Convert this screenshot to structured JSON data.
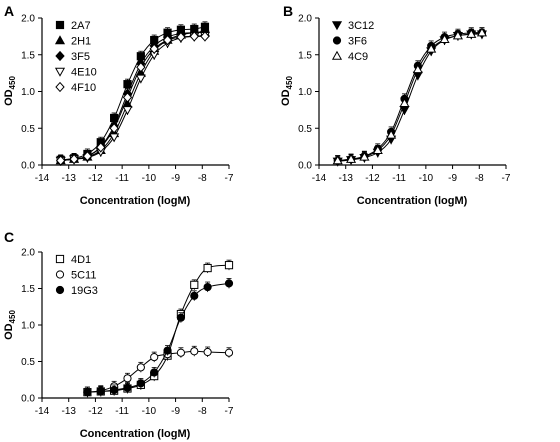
{
  "chart_data": [
    {
      "panel_letter": "A",
      "type": "scatter",
      "fit": "sigmoid",
      "xlabel": "Concentration (logM)",
      "ylabel": "OD450",
      "ylabel_main": "OD",
      "ylabel_sub": "450",
      "xlim": [
        -14,
        -7
      ],
      "ylim": [
        0,
        2.0
      ],
      "xticks": [
        "-14",
        "-13",
        "-12",
        "-11",
        "-10",
        "-9",
        "-8",
        "-7"
      ],
      "yticks": [
        "0.0",
        "0.5",
        "1.0",
        "1.5",
        "2.0"
      ],
      "legend_position": "top-left",
      "x": [
        -13.3,
        -12.8,
        -12.3,
        -11.8,
        -11.3,
        -10.8,
        -10.3,
        -9.8,
        -9.3,
        -8.8,
        -8.3,
        -7.9
      ],
      "series": [
        {
          "name": "2A7",
          "marker": "square-filled",
          "values": [
            0.07,
            0.09,
            0.15,
            0.31,
            0.64,
            1.1,
            1.48,
            1.7,
            1.8,
            1.84,
            1.85,
            1.88
          ]
        },
        {
          "name": "2H1",
          "marker": "triangle-up-filled",
          "values": [
            0.06,
            0.08,
            0.11,
            0.2,
            0.43,
            0.83,
            1.25,
            1.55,
            1.7,
            1.77,
            1.8,
            1.8
          ]
        },
        {
          "name": "3F5",
          "marker": "diamond-filled",
          "values": [
            0.06,
            0.08,
            0.12,
            0.25,
            0.53,
            0.97,
            1.38,
            1.62,
            1.74,
            1.79,
            1.8,
            1.82
          ]
        },
        {
          "name": "4E10",
          "marker": "triangle-down-open",
          "values": [
            0.06,
            0.08,
            0.1,
            0.18,
            0.38,
            0.75,
            1.18,
            1.5,
            1.66,
            1.73,
            1.75,
            1.76
          ]
        },
        {
          "name": "4F10",
          "marker": "diamond-open",
          "values": [
            0.06,
            0.08,
            0.12,
            0.24,
            0.5,
            0.92,
            1.33,
            1.58,
            1.7,
            1.74,
            1.75,
            1.75
          ]
        }
      ]
    },
    {
      "panel_letter": "B",
      "type": "scatter",
      "fit": "sigmoid",
      "xlabel": "Concentration (logM)",
      "ylabel": "OD450",
      "ylabel_main": "OD",
      "ylabel_sub": "450",
      "xlim": [
        -14,
        -7
      ],
      "ylim": [
        0,
        2.0
      ],
      "xticks": [
        "-14",
        "-13",
        "-12",
        "-11",
        "-10",
        "-9",
        "-8",
        "-7"
      ],
      "yticks": [
        "0.0",
        "0.5",
        "1.0",
        "1.5",
        "2.0"
      ],
      "legend_position": "top-left",
      "x": [
        -13.3,
        -12.8,
        -12.3,
        -11.8,
        -11.3,
        -10.8,
        -10.3,
        -9.8,
        -9.3,
        -8.8,
        -8.3,
        -7.9
      ],
      "series": [
        {
          "name": "3C12",
          "marker": "triangle-down-filled",
          "values": [
            0.05,
            0.07,
            0.1,
            0.17,
            0.35,
            0.75,
            1.22,
            1.55,
            1.7,
            1.76,
            1.78,
            1.78
          ]
        },
        {
          "name": "3F6",
          "marker": "circle-filled",
          "values": [
            0.06,
            0.08,
            0.12,
            0.22,
            0.45,
            0.9,
            1.35,
            1.62,
            1.74,
            1.78,
            1.8,
            1.8
          ]
        },
        {
          "name": "4C9",
          "marker": "triangle-up-open",
          "values": [
            0.06,
            0.08,
            0.11,
            0.2,
            0.41,
            0.84,
            1.3,
            1.58,
            1.71,
            1.76,
            1.78,
            1.8
          ]
        }
      ]
    },
    {
      "panel_letter": "C",
      "type": "scatter",
      "fit": "sigmoid",
      "xlabel": "Concentration (logM)",
      "ylabel": "OD450",
      "ylabel_main": "OD",
      "ylabel_sub": "450",
      "xlim": [
        -14,
        -7
      ],
      "ylim": [
        0,
        2.0
      ],
      "xticks": [
        "-14",
        "-13",
        "-12",
        "-11",
        "-10",
        "-9",
        "-8",
        "-7"
      ],
      "yticks": [
        "0.0",
        "0.5",
        "1.0",
        "1.5",
        "2.0"
      ],
      "legend_position": "top-left",
      "x": [
        -12.3,
        -11.8,
        -11.3,
        -10.8,
        -10.3,
        -9.8,
        -9.3,
        -8.8,
        -8.3,
        -7.8,
        -7.0
      ],
      "series": [
        {
          "name": "4D1",
          "marker": "square-open",
          "values": [
            0.08,
            0.09,
            0.1,
            0.13,
            0.18,
            0.3,
            0.58,
            1.15,
            1.55,
            1.78,
            1.82
          ]
        },
        {
          "name": "5C11",
          "marker": "circle-open",
          "values": [
            0.08,
            0.1,
            0.16,
            0.27,
            0.42,
            0.56,
            0.6,
            0.62,
            0.64,
            0.63,
            0.62
          ]
        },
        {
          "name": "19G3",
          "marker": "circle-filled",
          "values": [
            0.08,
            0.09,
            0.11,
            0.14,
            0.2,
            0.35,
            0.65,
            1.1,
            1.4,
            1.52,
            1.57
          ]
        }
      ]
    }
  ]
}
